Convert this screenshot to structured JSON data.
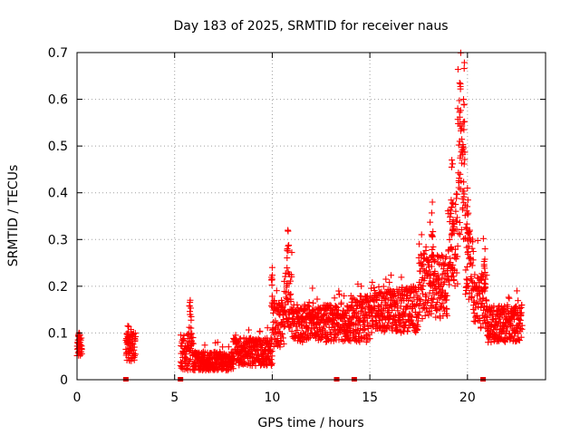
{
  "chart_data": {
    "type": "scatter",
    "title": "Day 183 of 2025, SRMTID for receiver naus",
    "xlabel": "GPS time / hours",
    "ylabel": "SRMTID / TECUs",
    "xlim": [
      0,
      24
    ],
    "ylim": [
      0,
      0.7
    ],
    "xticks": [
      0,
      5,
      10,
      15,
      20
    ],
    "xtick_labels": [
      "0",
      "5",
      "10",
      "15",
      "20"
    ],
    "yticks": [
      0,
      0.1,
      0.2,
      0.3,
      0.4,
      0.5,
      0.6,
      0.7
    ],
    "ytick_labels": [
      "0",
      "0.1",
      "0.2",
      "0.3",
      "0.4",
      "0.5",
      "0.6",
      "0.7"
    ],
    "grid": true,
    "marker": "+",
    "color": "#ff0000",
    "zero_markers_x": [
      2.5,
      5.3,
      13.3,
      14.2,
      20.8
    ],
    "segments": [
      {
        "x0": 0.0,
        "x1": 0.25,
        "base": 0.07,
        "amp": 0.02
      },
      {
        "x0": 2.5,
        "x1": 3.0,
        "base": 0.07,
        "amp": 0.03
      },
      {
        "x0": 5.3,
        "x1": 6.0,
        "base": 0.06,
        "amp": 0.04
      },
      {
        "x0": 6.0,
        "x1": 8.0,
        "base": 0.04,
        "amp": 0.02
      },
      {
        "x0": 8.0,
        "x1": 10.0,
        "base": 0.06,
        "amp": 0.03
      },
      {
        "x0": 10.0,
        "x1": 10.6,
        "base": 0.12,
        "amp": 0.05
      },
      {
        "x0": 10.6,
        "x1": 11.0,
        "base": 0.17,
        "amp": 0.06
      },
      {
        "x0": 11.0,
        "x1": 14.0,
        "base": 0.12,
        "amp": 0.04
      },
      {
        "x0": 14.0,
        "x1": 15.0,
        "base": 0.13,
        "amp": 0.05
      },
      {
        "x0": 15.0,
        "x1": 17.5,
        "base": 0.15,
        "amp": 0.05
      },
      {
        "x0": 17.5,
        "x1": 19.0,
        "base": 0.2,
        "amp": 0.07
      },
      {
        "x0": 19.0,
        "x1": 19.5,
        "base": 0.3,
        "amp": 0.1
      },
      {
        "x0": 19.5,
        "x1": 19.9,
        "base": 0.45,
        "amp": 0.15
      },
      {
        "x0": 19.9,
        "x1": 20.3,
        "base": 0.25,
        "amp": 0.08
      },
      {
        "x0": 20.3,
        "x1": 21.0,
        "base": 0.17,
        "amp": 0.06
      },
      {
        "x0": 21.0,
        "x1": 22.8,
        "base": 0.12,
        "amp": 0.04
      }
    ],
    "peaks": [
      {
        "x": 0.1,
        "y": 0.1
      },
      {
        "x": 2.6,
        "y": 0.115
      },
      {
        "x": 5.8,
        "y": 0.17
      },
      {
        "x": 10.0,
        "y": 0.24
      },
      {
        "x": 10.8,
        "y": 0.32
      },
      {
        "x": 18.2,
        "y": 0.38
      },
      {
        "x": 19.2,
        "y": 0.47
      },
      {
        "x": 19.6,
        "y": 0.635
      },
      {
        "x": 19.8,
        "y": 0.6
      },
      {
        "x": 20.0,
        "y": 0.41
      },
      {
        "x": 20.9,
        "y": 0.28
      }
    ]
  }
}
